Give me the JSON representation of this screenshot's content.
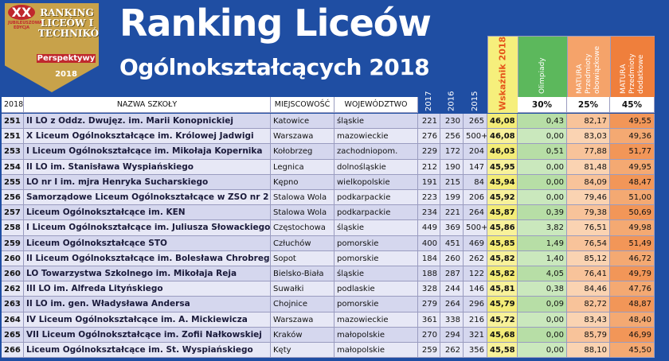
{
  "logo": {
    "badge": "XX",
    "edition": "JUBILEUSZOWA EDYCJA",
    "title": "RANKING LICEÓW I TECHNIKÓW",
    "brand": "Perspektywy",
    "year": "2018"
  },
  "header": {
    "title": "Ranking Liceów",
    "subtitle": "Ogólnokształcących 2018"
  },
  "table": {
    "columns": [
      "2018",
      "NAZWA SZKOŁY",
      "MIEJSCOWOŚĆ",
      "WOJEWÓDZTWO",
      "2017",
      "2016",
      "2015",
      "Wskaźnik 2018",
      "Olimpiady",
      "MATURA Przedmioty obowiązkowe",
      "MATURA Przedmioty dodatkowe"
    ],
    "weights": [
      "30%",
      "25%",
      "45%"
    ],
    "rows": [
      [
        "251",
        "II LO z Oddz. Dwujęz. im. Marii Konopnickiej",
        "Katowice",
        "śląskie",
        "221",
        "230",
        "265",
        "46,08",
        "0,43",
        "82,17",
        "49,55"
      ],
      [
        "251",
        "X Liceum Ogólnokształcące im. Królowej Jadwigi",
        "Warszawa",
        "mazowieckie",
        "276",
        "256",
        "500+",
        "46,08",
        "0,00",
        "83,03",
        "49,36"
      ],
      [
        "253",
        "I Liceum Ogólnokształcące im. Mikołaja Kopernika",
        "Kołobrzeg",
        "zachodniopom.",
        "229",
        "172",
        "204",
        "46,03",
        "0,51",
        "77,88",
        "51,77"
      ],
      [
        "254",
        "II LO im. Stanisława Wyspiańskiego",
        "Legnica",
        "dolnośląskie",
        "212",
        "190",
        "147",
        "45,95",
        "0,00",
        "81,48",
        "49,95"
      ],
      [
        "255",
        "LO nr I im. mjra Henryka Sucharskiego",
        "Kępno",
        "wielkopolskie",
        "191",
        "215",
        "84",
        "45,94",
        "0,00",
        "84,09",
        "48,47"
      ],
      [
        "256",
        "Samorządowe Liceum Ogólnokształcące w ZSO nr 2",
        "Stalowa Wola",
        "podkarpackie",
        "223",
        "199",
        "206",
        "45,92",
        "0,00",
        "79,46",
        "51,00"
      ],
      [
        "257",
        "Liceum Ogólnokształcące im. KEN",
        "Stalowa Wola",
        "podkarpackie",
        "234",
        "221",
        "264",
        "45,87",
        "0,39",
        "79,38",
        "50,69"
      ],
      [
        "258",
        "I Liceum Ogólnokształcące im. Juliusza Słowackiego",
        "Częstochowa",
        "śląskie",
        "449",
        "369",
        "500+",
        "45,86",
        "3,82",
        "76,51",
        "49,98"
      ],
      [
        "259",
        "Liceum Ogólnokształcące STO",
        "Człuchów",
        "pomorskie",
        "400",
        "451",
        "469",
        "45,85",
        "1,49",
        "76,54",
        "51,49"
      ],
      [
        "260",
        "II Liceum Ogólnokształcące im. Bolesława Chrobrego",
        "Sopot",
        "pomorskie",
        "184",
        "260",
        "262",
        "45,82",
        "1,40",
        "85,12",
        "46,72"
      ],
      [
        "260",
        "LO Towarzystwa Szkolnego im. Mikołaja Reja",
        "Bielsko-Biała",
        "śląskie",
        "188",
        "287",
        "122",
        "45,82",
        "4,05",
        "76,41",
        "49,79"
      ],
      [
        "262",
        "III LO im. Alfreda Lityńskiego",
        "Suwałki",
        "podlaskie",
        "328",
        "244",
        "146",
        "45,81",
        "0,38",
        "84,46",
        "47,76"
      ],
      [
        "263",
        "II LO im. gen. Władysława Andersa",
        "Chojnice",
        "pomorskie",
        "279",
        "264",
        "296",
        "45,79",
        "0,09",
        "82,72",
        "48,87"
      ],
      [
        "264",
        "IV Liceum Ogólnokształcące im. A. Mickiewicza",
        "Warszawa",
        "mazowieckie",
        "361",
        "338",
        "216",
        "45,72",
        "0,00",
        "83,43",
        "48,40"
      ],
      [
        "265",
        "VII Liceum Ogólnokształcące im. Zofii Nałkowskiej",
        "Kraków",
        "małopolskie",
        "270",
        "294",
        "321",
        "45,68",
        "0,00",
        "85,79",
        "46,99"
      ],
      [
        "266",
        "Liceum Ogólnokształcące im. St. Wyspiańskiego",
        "Kęty",
        "małopolskie",
        "259",
        "262",
        "356",
        "45,58",
        "0,00",
        "88,10",
        "45,50"
      ]
    ]
  }
}
